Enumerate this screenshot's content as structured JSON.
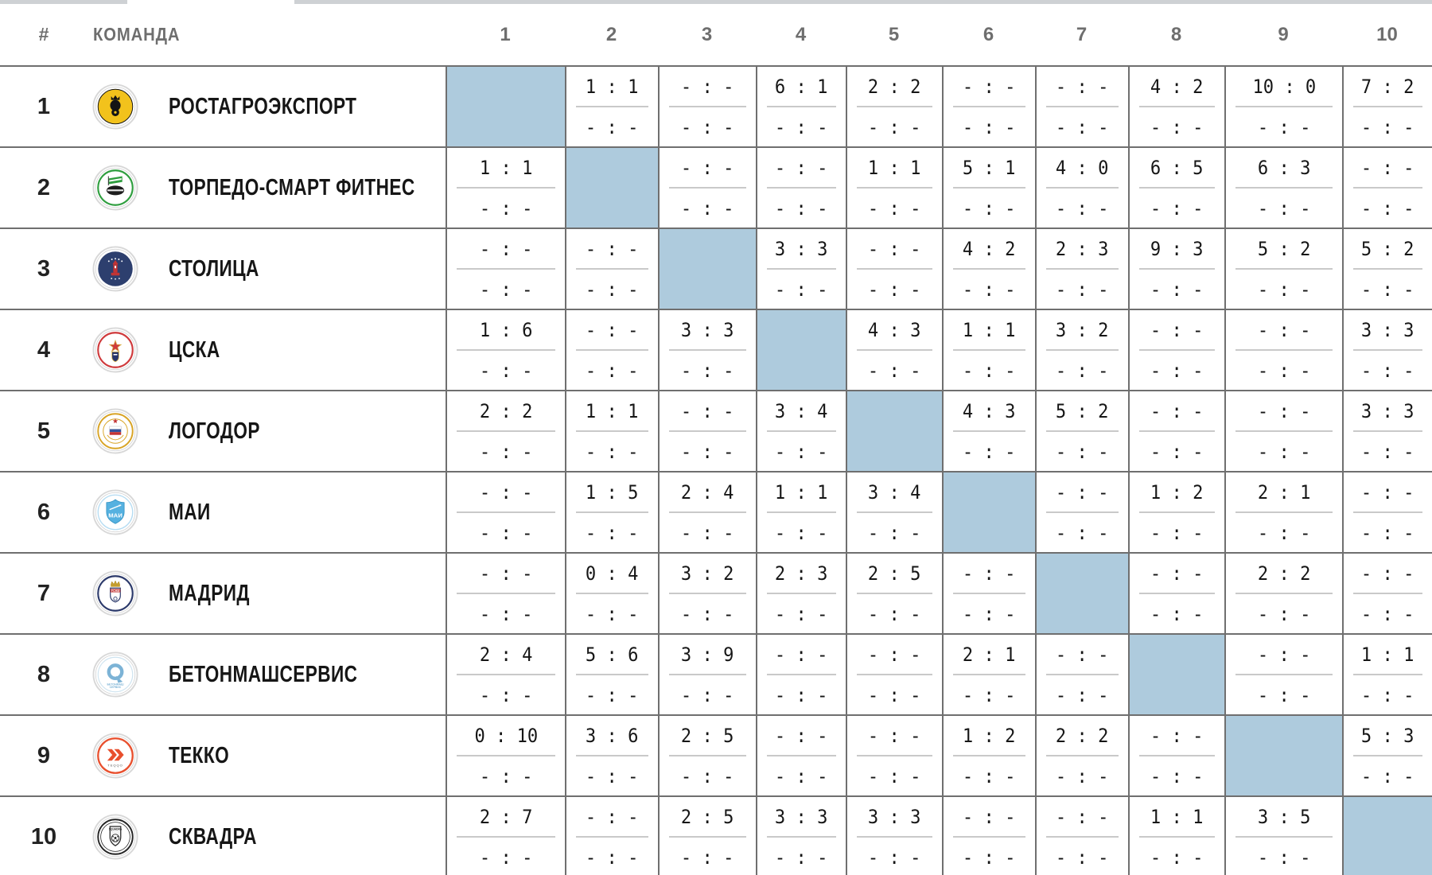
{
  "header": {
    "rank_label": "#",
    "team_label": "КОМАНДА",
    "round_columns": [
      "1",
      "2",
      "3",
      "4",
      "5",
      "6",
      "7",
      "8",
      "9",
      "10"
    ]
  },
  "empty_score": "- : -",
  "colors": {
    "border": "#6f6f6f",
    "cell_divider": "#c9c9c9",
    "diagonal_fill": "#aecbdd",
    "header_text": "#6e6e6e",
    "score_text": "#161616",
    "top_strip": "#ced1d4"
  },
  "teams": [
    {
      "rank": "1",
      "name": "РОСТАГРОЭКСПОРТ",
      "logo": {
        "name": "rostagroexport-logo",
        "motif": "lion",
        "primary": "#f2c21c",
        "secondary": "#141414"
      },
      "results": [
        null,
        [
          "1 : 1",
          "- : -"
        ],
        [
          "- : -",
          "- : -"
        ],
        [
          "6 : 1",
          "- : -"
        ],
        [
          "2 : 2",
          "- : -"
        ],
        [
          "- : -",
          "- : -"
        ],
        [
          "- : -",
          "- : -"
        ],
        [
          "4 : 2",
          "- : -"
        ],
        [
          "10 : 0",
          "- : -"
        ],
        [
          "7 : 2",
          "- : -"
        ]
      ]
    },
    {
      "rank": "2",
      "name": "ТОРПЕДО-СМАРТ ФИТНЕС",
      "logo": {
        "name": "torpedo-smart-fitness-logo",
        "motif": "flag-gear",
        "primary": "#ffffff",
        "secondary": "#2f9e3f"
      },
      "results": [
        [
          "1 : 1",
          "- : -"
        ],
        null,
        [
          "- : -",
          "- : -"
        ],
        [
          "- : -",
          "- : -"
        ],
        [
          "1 : 1",
          "- : -"
        ],
        [
          "5 : 1",
          "- : -"
        ],
        [
          "4 : 0",
          "- : -"
        ],
        [
          "6 : 5",
          "- : -"
        ],
        [
          "6 : 3",
          "- : -"
        ],
        [
          "- : -",
          "- : -"
        ]
      ]
    },
    {
      "rank": "3",
      "name": "СТОЛИЦА",
      "logo": {
        "name": "stolitsa-logo",
        "motif": "tower",
        "primary": "#2d3f6e",
        "secondary": "#c23434"
      },
      "results": [
        [
          "- : -",
          "- : -"
        ],
        [
          "- : -",
          "- : -"
        ],
        null,
        [
          "3 : 3",
          "- : -"
        ],
        [
          "- : -",
          "- : -"
        ],
        [
          "4 : 2",
          "- : -"
        ],
        [
          "2 : 3",
          "- : -"
        ],
        [
          "9 : 3",
          "- : -"
        ],
        [
          "5 : 2",
          "- : -"
        ],
        [
          "5 : 2",
          "- : -"
        ]
      ]
    },
    {
      "rank": "4",
      "name": "ЦСКА",
      "logo": {
        "name": "cska-logo",
        "motif": "star-shield",
        "primary": "#ffffff",
        "secondary": "#cf3a3c",
        "accent": "#27356b"
      },
      "results": [
        [
          "1 : 6",
          "- : -"
        ],
        [
          "- : -",
          "- : -"
        ],
        [
          "3 : 3",
          "- : -"
        ],
        null,
        [
          "4 : 3",
          "- : -"
        ],
        [
          "1 : 1",
          "- : -"
        ],
        [
          "3 : 2",
          "- : -"
        ],
        [
          "- : -",
          "- : -"
        ],
        [
          "- : -",
          "- : -"
        ],
        [
          "3 : 3",
          "- : -"
        ]
      ]
    },
    {
      "rank": "5",
      "name": "ЛОГОДОР",
      "logo": {
        "name": "logodor-logo",
        "motif": "tricolor",
        "primary": "#ffffff",
        "secondary": "#d8a426",
        "accent": "#c23434"
      },
      "results": [
        [
          "2 : 2",
          "- : -"
        ],
        [
          "1 : 1",
          "- : -"
        ],
        [
          "- : -",
          "- : -"
        ],
        [
          "3 : 4",
          "- : -"
        ],
        null,
        [
          "4 : 3",
          "- : -"
        ],
        [
          "5 : 2",
          "- : -"
        ],
        [
          "- : -",
          "- : -"
        ],
        [
          "- : -",
          "- : -"
        ],
        [
          "3 : 3",
          "- : -"
        ]
      ]
    },
    {
      "rank": "6",
      "name": "МАИ",
      "logo": {
        "name": "mai-logo",
        "motif": "shield-mai",
        "primary": "#ffffff",
        "secondary": "#55b1e0"
      },
      "results": [
        [
          "- : -",
          "- : -"
        ],
        [
          "1 : 5",
          "- : -"
        ],
        [
          "2 : 4",
          "- : -"
        ],
        [
          "1 : 1",
          "- : -"
        ],
        [
          "3 : 4",
          "- : -"
        ],
        null,
        [
          "- : -",
          "- : -"
        ],
        [
          "1 : 2",
          "- : -"
        ],
        [
          "2 : 1",
          "- : -"
        ],
        [
          "- : -",
          "- : -"
        ]
      ]
    },
    {
      "rank": "7",
      "name": "МАДРИД",
      "logo": {
        "name": "madrid-logo",
        "motif": "crown-shield",
        "primary": "#ffffff",
        "secondary": "#2c3a6b",
        "accent": "#c8a02c"
      },
      "results": [
        [
          "- : -",
          "- : -"
        ],
        [
          "0 : 4",
          "- : -"
        ],
        [
          "3 : 2",
          "- : -"
        ],
        [
          "2 : 3",
          "- : -"
        ],
        [
          "2 : 5",
          "- : -"
        ],
        [
          "- : -",
          "- : -"
        ],
        null,
        [
          "- : -",
          "- : -"
        ],
        [
          "2 : 2",
          "- : -"
        ],
        [
          "- : -",
          "- : -"
        ]
      ]
    },
    {
      "rank": "8",
      "name": "БЕТОНМАШСЕРВИС",
      "logo": {
        "name": "betonmashservis-logo",
        "motif": "q-mark",
        "primary": "#ffffff",
        "secondary": "#7cb3d6"
      },
      "results": [
        [
          "2 : 4",
          "- : -"
        ],
        [
          "5 : 6",
          "- : -"
        ],
        [
          "3 : 9",
          "- : -"
        ],
        [
          "- : -",
          "- : -"
        ],
        [
          "- : -",
          "- : -"
        ],
        [
          "2 : 1",
          "- : -"
        ],
        [
          "- : -",
          "- : -"
        ],
        null,
        [
          "- : -",
          "- : -"
        ],
        [
          "1 : 1",
          "- : -"
        ]
      ]
    },
    {
      "rank": "9",
      "name": "ТЕККО",
      "logo": {
        "name": "tekko-logo",
        "motif": "chevrons",
        "primary": "#ffffff",
        "secondary": "#e8502e",
        "caption": "TEQQO"
      },
      "results": [
        [
          "0 : 10",
          "- : -"
        ],
        [
          "3 : 6",
          "- : -"
        ],
        [
          "2 : 5",
          "- : -"
        ],
        [
          "- : -",
          "- : -"
        ],
        [
          "- : -",
          "- : -"
        ],
        [
          "1 : 2",
          "- : -"
        ],
        [
          "2 : 2",
          "- : -"
        ],
        [
          "- : -",
          "- : -"
        ],
        null,
        [
          "5 : 3",
          "- : -"
        ]
      ]
    },
    {
      "rank": "10",
      "name": "СКВАДРА",
      "logo": {
        "name": "skvadra-logo",
        "motif": "shield-ball",
        "primary": "#ffffff",
        "secondary": "#262626",
        "caption": "SQUADRA"
      },
      "results": [
        [
          "2 : 7",
          "- : -"
        ],
        [
          "- : -",
          "- : -"
        ],
        [
          "2 : 5",
          "- : -"
        ],
        [
          "3 : 3",
          "- : -"
        ],
        [
          "3 : 3",
          "- : -"
        ],
        [
          "- : -",
          "- : -"
        ],
        [
          "- : -",
          "- : -"
        ],
        [
          "1 : 1",
          "- : -"
        ],
        [
          "3 : 5",
          "- : -"
        ],
        null
      ]
    }
  ]
}
